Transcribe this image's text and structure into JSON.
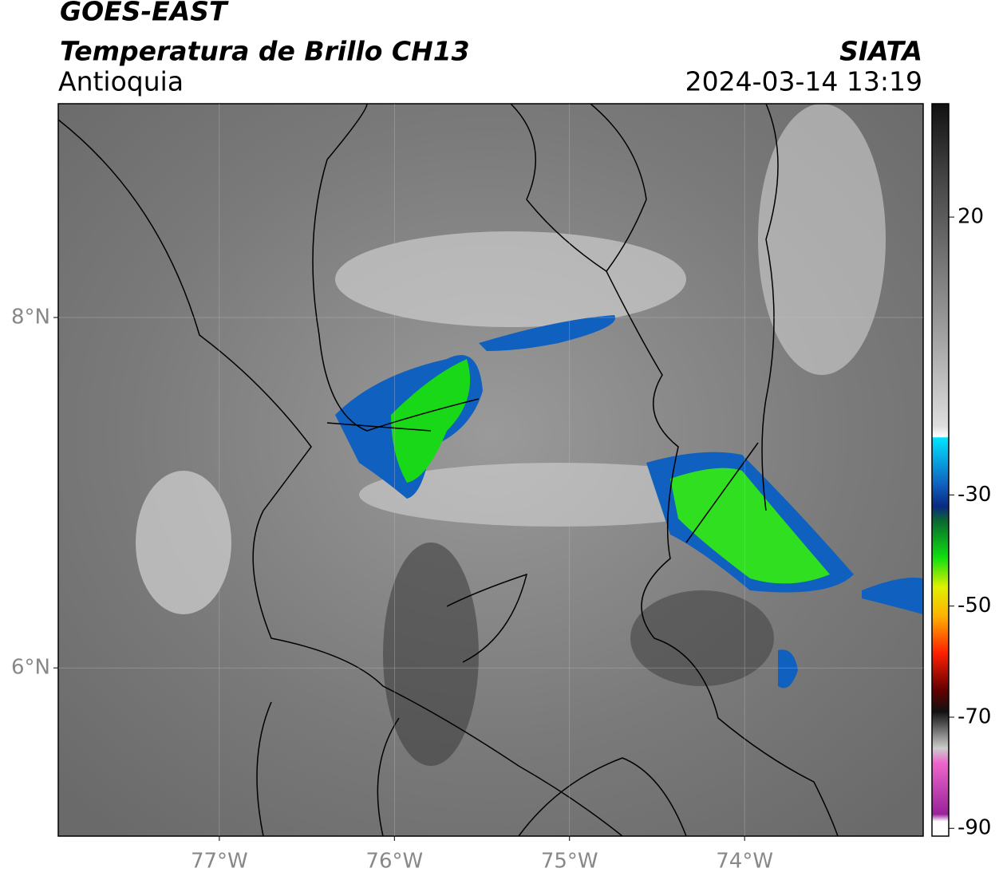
{
  "header": {
    "title": "GOES-EAST",
    "subtitle": "Temperatura de Brillo CH13",
    "region": "Antioquia",
    "source": "SIATA",
    "datetime": "2024-03-14 13:19"
  },
  "map": {
    "xlim": [
      -77.92,
      -72.98
    ],
    "ylim": [
      5.04,
      9.22
    ],
    "xticks": [
      {
        "value": -77,
        "label": "77°W"
      },
      {
        "value": -76,
        "label": "76°W"
      },
      {
        "value": -75,
        "label": "75°W"
      },
      {
        "value": -74,
        "label": "74°W"
      }
    ],
    "yticks": [
      {
        "value": 8,
        "label": "8°N"
      },
      {
        "value": 6,
        "label": "6°N"
      }
    ],
    "grid": true
  },
  "colorbar": {
    "lim": [
      -91.4,
      40.4
    ],
    "ticks": [
      20,
      -30,
      -50,
      -70,
      -90
    ]
  }
}
